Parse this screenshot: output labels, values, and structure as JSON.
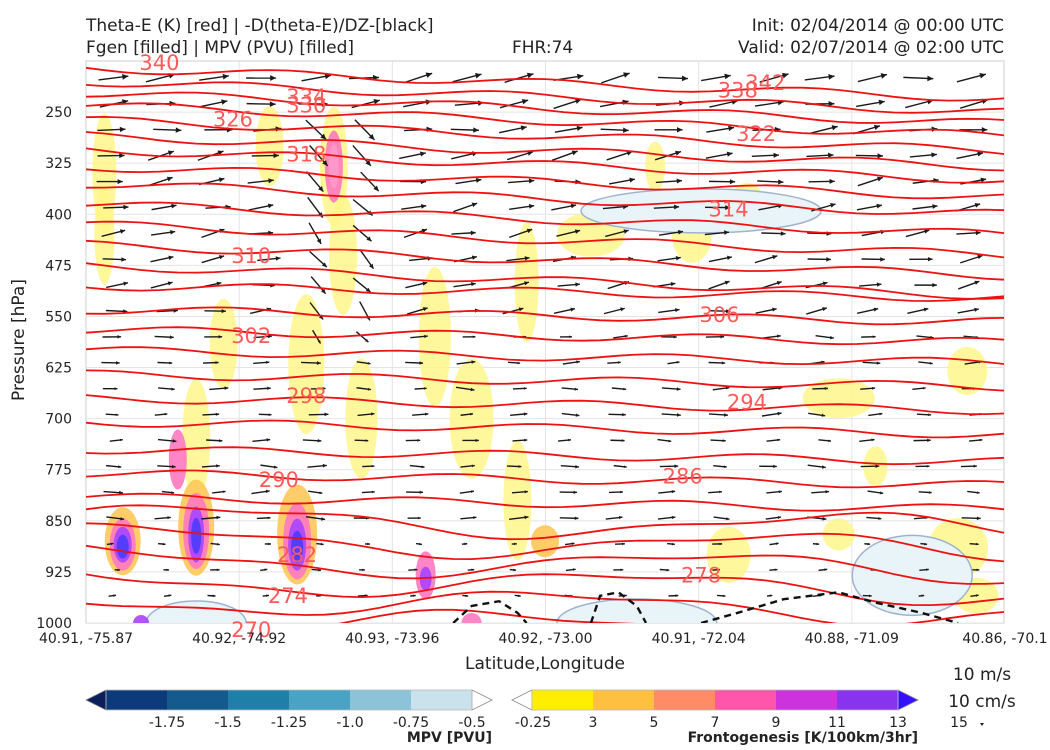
{
  "header": {
    "title_left_line1": "Theta-E (K) [red] | -D(theta-E)/DZ-[black]",
    "title_left_line2": "Fgen [filled] | MPV (PVU) [filled]",
    "fhr": "FHR:74",
    "init": "Init: 02/04/2014 @ 00:00 UTC",
    "valid": "Valid: 02/07/2014 @ 02:00 UTC"
  },
  "chart_data": {
    "type": "cross-section",
    "xlabel": "Latitude,Longitude",
    "ylabel": "Pressure [hPa]",
    "x_ticks": [
      "40.91, -75.87",
      "40.92, -74.92",
      "40.93, -73.96",
      "40.92, -73.00",
      "40.91, -72.04",
      "40.88, -71.09",
      "40.86, -70.1"
    ],
    "y_ticks": [
      250,
      325,
      400,
      475,
      550,
      625,
      700,
      775,
      850,
      925,
      1000
    ],
    "ylim": [
      1000,
      175
    ],
    "y_reversed": true,
    "theta_e_labels": [
      {
        "value": "340",
        "x": 0.08,
        "p": 178
      },
      {
        "value": "334",
        "x": 0.24,
        "p": 228
      },
      {
        "value": "330",
        "x": 0.24,
        "p": 240
      },
      {
        "value": "326",
        "x": 0.16,
        "p": 261
      },
      {
        "value": "318",
        "x": 0.24,
        "p": 312
      },
      {
        "value": "310",
        "x": 0.18,
        "p": 461
      },
      {
        "value": "302",
        "x": 0.18,
        "p": 579
      },
      {
        "value": "298",
        "x": 0.24,
        "p": 667
      },
      {
        "value": "290",
        "x": 0.21,
        "p": 790
      },
      {
        "value": "282",
        "x": 0.23,
        "p": 900
      },
      {
        "value": "274",
        "x": 0.22,
        "p": 960
      },
      {
        "value": "270",
        "x": 0.18,
        "p": 1010
      },
      {
        "value": "338",
        "x": 0.71,
        "p": 218
      },
      {
        "value": "342",
        "x": 0.74,
        "p": 207
      },
      {
        "value": "322",
        "x": 0.73,
        "p": 282
      },
      {
        "value": "314",
        "x": 0.7,
        "p": 393
      },
      {
        "value": "306",
        "x": 0.69,
        "p": 548
      },
      {
        "value": "294",
        "x": 0.72,
        "p": 676
      },
      {
        "value": "286",
        "x": 0.65,
        "p": 785
      },
      {
        "value": "278",
        "x": 0.67,
        "p": 930
      }
    ],
    "wind_reference": {
      "horizontal": "10 m/s",
      "vertical": "10 cm/s"
    },
    "colorbars": [
      {
        "label": "MPV [PVU]",
        "ticks": [
          "-1.75",
          "-1.5",
          "-1.25",
          "-1.0",
          "-0.75",
          "-0.5",
          "-0.25"
        ],
        "colors": [
          "#0a1f5c",
          "#0d3a7a",
          "#145a8f",
          "#1f7fa8",
          "#4aa3c4",
          "#8cc3d9",
          "#c9e2ec",
          "#ffffff"
        ]
      },
      {
        "label": "Frontogenesis [K/100km/3hr]",
        "ticks": [
          "3",
          "5",
          "7",
          "9",
          "11",
          "13",
          "15"
        ],
        "colors": [
          "#ffffff",
          "#ffee00",
          "#ffbf40",
          "#ff8c66",
          "#ff55aa",
          "#cc33dd",
          "#8833ee",
          "#3311ff"
        ]
      }
    ]
  }
}
